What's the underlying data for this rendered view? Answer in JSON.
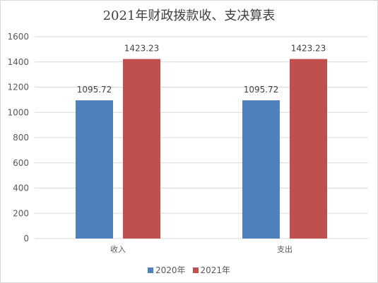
{
  "chart_data": {
    "type": "bar",
    "title": "2021年财政拨款收、支决算表",
    "xlabel": "",
    "ylabel": "",
    "categories": [
      "收入",
      "支出"
    ],
    "series": [
      {
        "name": "2020年",
        "values": [
          1095.72,
          1095.72
        ],
        "labels": [
          "1095.72",
          "1095.72"
        ],
        "color": "#4f81bd"
      },
      {
        "name": "2021年",
        "values": [
          1423.23,
          1423.23
        ],
        "labels": [
          "1423.23",
          "1423.23"
        ],
        "color": "#c0504d"
      }
    ],
    "ylim": [
      0,
      1600
    ],
    "yticks": [
      "0",
      "200",
      "400",
      "600",
      "800",
      "1000",
      "1200",
      "1400",
      "1600"
    ],
    "grid": true,
    "legend_position": "bottom"
  }
}
